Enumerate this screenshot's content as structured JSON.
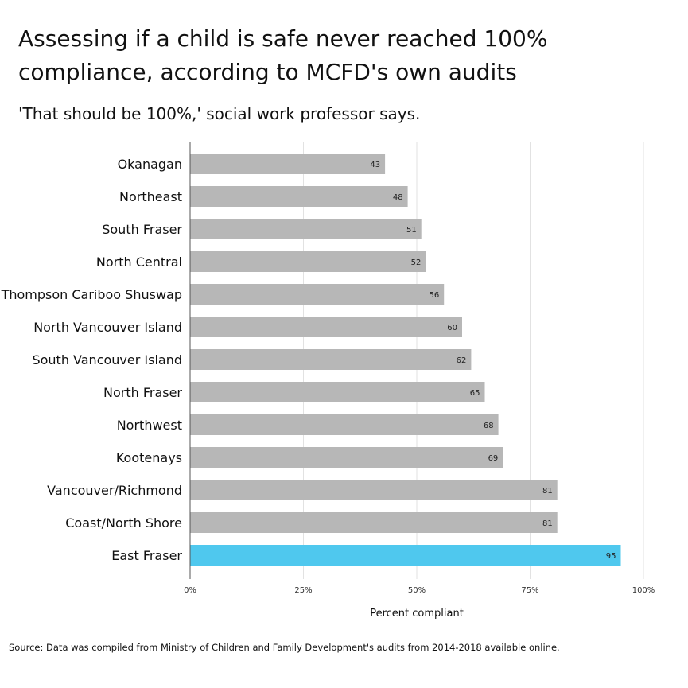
{
  "header": {
    "title": "Assessing if a child is safe never reached 100% compliance, according to MCFD's own audits",
    "subtitle": "'That should be 100%,' social work professor says."
  },
  "chart_data": {
    "type": "bar",
    "orientation": "horizontal",
    "categories": [
      "Okanagan",
      "Northeast",
      "South Fraser",
      "North Central",
      "Thompson Cariboo Shuswap",
      "North Vancouver Island",
      "South Vancouver Island",
      "North Fraser",
      "Northwest",
      "Kootenays",
      "Vancouver/Richmond",
      "Coast/North Shore",
      "East Fraser"
    ],
    "values": [
      43,
      48,
      51,
      52,
      56,
      60,
      62,
      65,
      68,
      69,
      81,
      81,
      95
    ],
    "highlight": "East Fraser",
    "xlabel": "Percent compliant",
    "ylabel": "",
    "xlim": [
      0,
      100
    ],
    "ticks": [
      0,
      25,
      50,
      75,
      100
    ],
    "tick_labels": [
      "0%",
      "25%",
      "50%",
      "75%",
      "100%"
    ],
    "grid": true,
    "colors": {
      "bar": "#b7b7b7",
      "highlight": "#4fc8ee",
      "grid": "#e2e2e2",
      "axis": "#555555"
    }
  },
  "footer": {
    "source": "Source: Data was compiled from Ministry of Children and Family Development's audits from 2014-2018 available online."
  }
}
